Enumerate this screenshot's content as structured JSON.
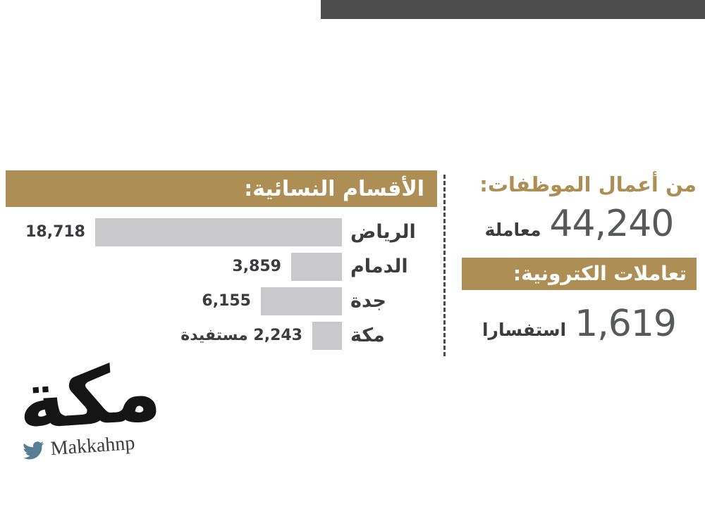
{
  "colors": {
    "gold": "#ad8e55",
    "bar_gray": "#c9c9cb",
    "text_dark": "#3c3c3e",
    "number_gray": "#58595b",
    "top_bar": "#4d4d4d",
    "twitter_blue": "#5a7d96"
  },
  "chart_data": {
    "type": "bar",
    "orientation": "horizontal",
    "title": "الأقسام النسائية:",
    "categories": [
      "الرياض",
      "الدمام",
      "جدة",
      "مكة"
    ],
    "values": [
      18718,
      3859,
      6155,
      2243
    ],
    "value_labels": [
      "18,718",
      "3,859",
      "6,155",
      "2,243 مستفيدة"
    ],
    "xlim": [
      0,
      18718
    ],
    "legend": "none",
    "grid": false
  },
  "stats": [
    {
      "heading": "من أعمال الموظفات:",
      "number": "44,240",
      "unit": "معاملة"
    },
    {
      "heading": "تعاملات الكترونية:",
      "number": "1,619",
      "unit": "استفسارا"
    }
  ],
  "footer": {
    "logo_text": "مكة",
    "twitter_handle": "Makkahnp"
  }
}
